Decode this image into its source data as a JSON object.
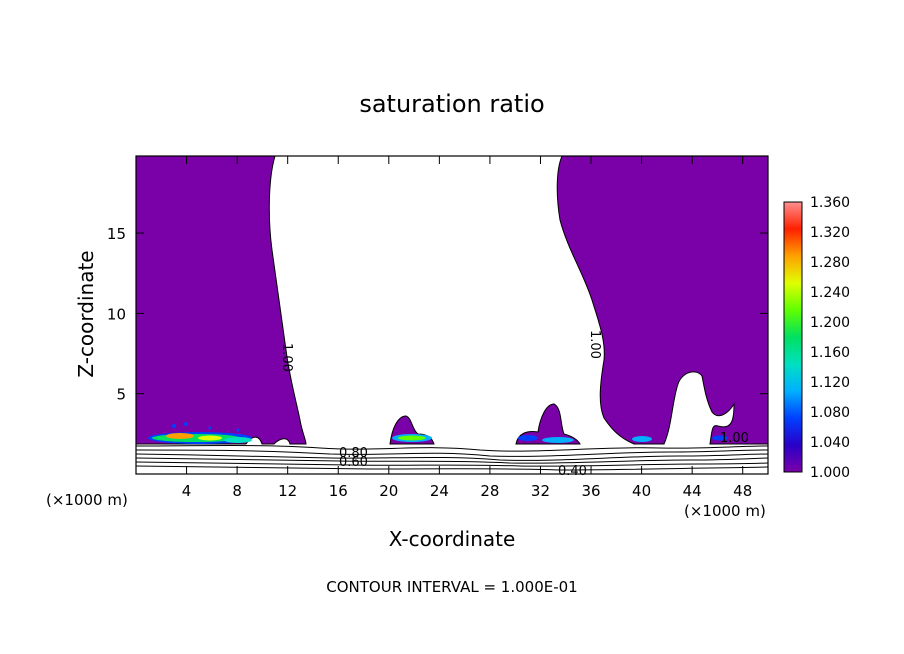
{
  "chart_data": {
    "type": "heatmap",
    "title": "saturation ratio",
    "xlabel": "X-coordinate",
    "ylabel": "Z-coordinate",
    "x_unit_label": "(×1000 m)",
    "x_unit_label_right": "(×1000 m)",
    "xlim": [
      0,
      50
    ],
    "ylim": [
      0,
      19.8
    ],
    "x_ticks": [
      "4",
      "8",
      "12",
      "16",
      "20",
      "24",
      "28",
      "32",
      "36",
      "40",
      "44",
      "48"
    ],
    "y_ticks": [
      "5",
      "10",
      "15"
    ],
    "colorbar": {
      "min": 1.0,
      "max": 1.36,
      "labels": [
        "1.360",
        "1.320",
        "1.280",
        "1.240",
        "1.200",
        "1.160",
        "1.120",
        "1.080",
        "1.040",
        "1.000"
      ]
    },
    "contour_labels": [
      "1.00",
      "1.00",
      "1.00",
      "0.80",
      "0.60",
      "0.40"
    ],
    "footer": "CONTOUR INTERVAL = 1.000E-01",
    "colors": {
      "saturated": "#7a00a8",
      "subsaturated": "#ffffff"
    }
  }
}
